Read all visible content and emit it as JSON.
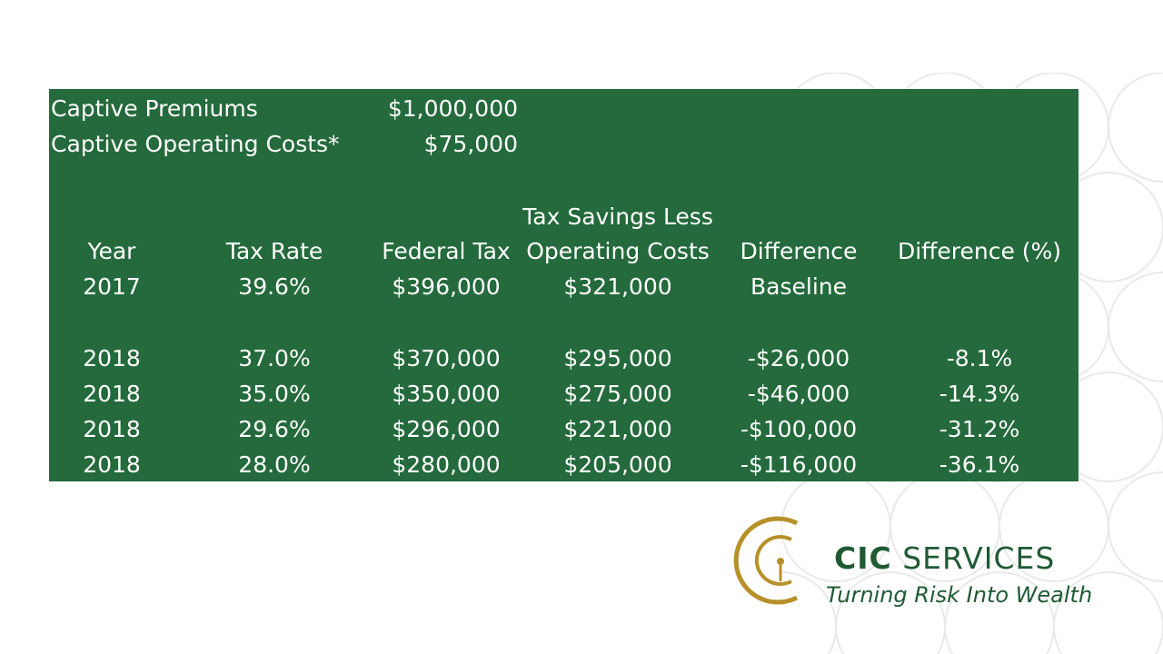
{
  "inputs": {
    "premiums_label": "Captive Premiums",
    "premiums_value": "$1,000,000",
    "op_costs_label": "Captive Operating Costs*",
    "op_costs_value": "$75,000"
  },
  "table": {
    "headers": {
      "year": "Year",
      "tax_rate": "Tax Rate",
      "federal_tax": "Federal Tax",
      "savings_line1": "Tax Savings Less",
      "savings_line2": "Operating Costs",
      "difference": "Difference",
      "difference_pct": "Difference (%)"
    },
    "baseline_row": {
      "year": "2017",
      "tax_rate": "39.6%",
      "federal_tax": "$396,000",
      "savings": "$321,000",
      "difference": "Baseline",
      "difference_pct": ""
    },
    "rows": [
      {
        "year": "2018",
        "tax_rate": "37.0%",
        "federal_tax": "$370,000",
        "savings": "$295,000",
        "difference": "-$26,000",
        "difference_pct": "-8.1%"
      },
      {
        "year": "2018",
        "tax_rate": "35.0%",
        "federal_tax": "$350,000",
        "savings": "$275,000",
        "difference": "-$46,000",
        "difference_pct": "-14.3%"
      },
      {
        "year": "2018",
        "tax_rate": "29.6%",
        "federal_tax": "$296,000",
        "savings": "$221,000",
        "difference": "-$100,000",
        "difference_pct": "-31.2%"
      },
      {
        "year": "2018",
        "tax_rate": "28.0%",
        "federal_tax": "$280,000",
        "savings": "$205,000",
        "difference": "-$116,000",
        "difference_pct": "-36.1%"
      }
    ]
  },
  "logo": {
    "name_bold": "CIC",
    "name_rest": " SERVICES",
    "tagline": "Turning Risk Into Wealth",
    "lettering": "CIC SERVICES"
  },
  "colors": {
    "table_background": "#246a3c",
    "table_text": "#ffffff",
    "logo_gold": "#b8902a",
    "logo_green": "#1f5a33"
  }
}
